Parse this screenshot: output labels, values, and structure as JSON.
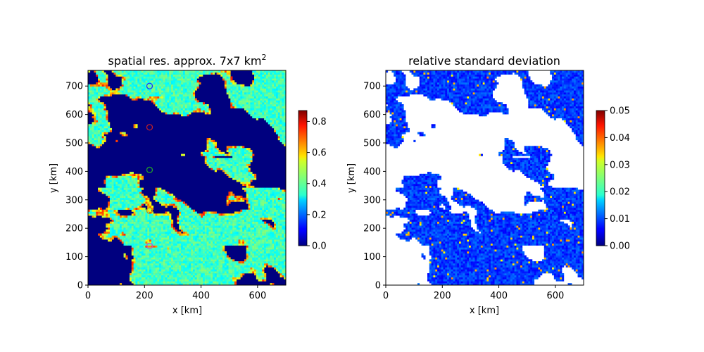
{
  "chart_data": [
    {
      "type": "heatmap",
      "title": "spatial res. approx. 7x7 km",
      "title_superscript": "2",
      "xlabel": "x [km]",
      "ylabel": "y [km]",
      "xlim": [
        0,
        700
      ],
      "ylim": [
        0,
        755
      ],
      "xticks": [
        "0",
        "200",
        "400",
        "600"
      ],
      "yticks": [
        "0",
        "100",
        "200",
        "300",
        "400",
        "500",
        "600",
        "700"
      ],
      "colormap": "jet",
      "colorbar": {
        "min": 0.0,
        "max": 0.87,
        "ticks": [
          "0.0",
          "0.2",
          "0.4",
          "0.6",
          "0.8"
        ]
      },
      "background_color": "#00007f",
      "markers": [
        {
          "x": 218,
          "y": 700,
          "color": "#2222ff"
        },
        {
          "x": 218,
          "y": 555,
          "color": "#cc2222"
        },
        {
          "x": 218,
          "y": 405,
          "color": "#22aa22"
        },
        {
          "x": 218,
          "y": 262,
          "color": "#cc8800"
        },
        {
          "x": 218,
          "y": 138,
          "color": "#cc44cc"
        }
      ]
    },
    {
      "type": "heatmap",
      "title": "relative standard deviation",
      "xlabel": "x [km]",
      "ylabel": "y [km]",
      "xlim": [
        0,
        700
      ],
      "ylim": [
        0,
        755
      ],
      "xticks": [
        "0",
        "200",
        "400",
        "600"
      ],
      "yticks": [
        "0",
        "100",
        "200",
        "300",
        "400",
        "500",
        "600",
        "700"
      ],
      "colormap": "jet",
      "colorbar": {
        "min": 0.0,
        "max": 0.05,
        "ticks": [
          "0.00",
          "0.01",
          "0.02",
          "0.03",
          "0.04",
          "0.05"
        ]
      },
      "background_color": "#ffffff"
    }
  ]
}
